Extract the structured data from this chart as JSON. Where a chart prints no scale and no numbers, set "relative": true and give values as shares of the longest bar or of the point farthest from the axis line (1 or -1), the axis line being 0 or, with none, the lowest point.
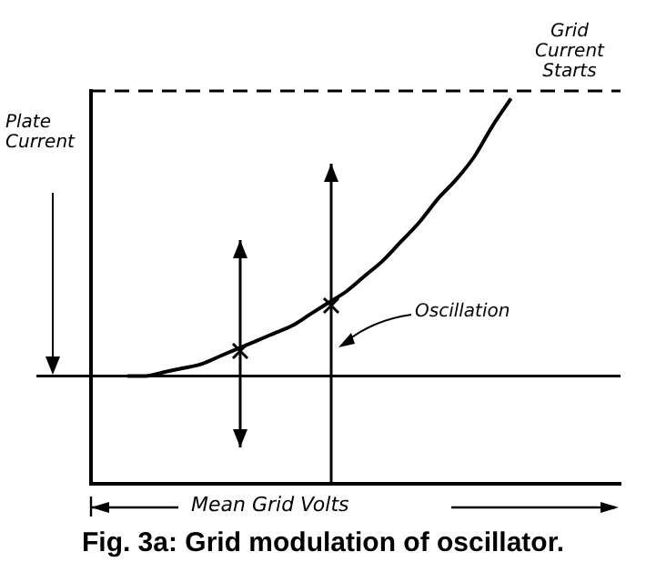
{
  "chart_data": {
    "type": "line",
    "relative": true,
    "title": "Fig. 3a: Grid modulation of oscillator.",
    "xlabel": "Mean Grid Volts",
    "ylabel": "Plate Current",
    "annotations": [
      "Oscillation"
    ],
    "categories": [
      null,
      null,
      null,
      null,
      null,
      null,
      null,
      null,
      null,
      null,
      null,
      null,
      null,
      null,
      null,
      null,
      null,
      null,
      null,
      null,
      null,
      null,
      null,
      null,
      null,
      null,
      null,
      null,
      null,
      null
    ],
    "series": [
      {
        "color": "#000000",
        "values": [
          null,
          null,
          0.28,
          0.28,
          0.29,
          0.3,
          0.31,
          0.33,
          0.35,
          0.37,
          0.39,
          0.41,
          0.44,
          0.47,
          0.5,
          0.54,
          0.58,
          0.63,
          0.68,
          0.74,
          0.79,
          0.85,
          0.93,
          1,
          null,
          null,
          null,
          null,
          null,
          null
        ]
      }
    ],
    "ref_lines": [
      {
        "axis": "y",
        "value": 0.28,
        "label": null
      },
      {
        "axis": "y",
        "value": 1.02,
        "label": "Grid Current Starts",
        "line_style": "dashed"
      }
    ],
    "grid": false,
    "legend": false,
    "marker": "none",
    "line_style": "solid"
  }
}
